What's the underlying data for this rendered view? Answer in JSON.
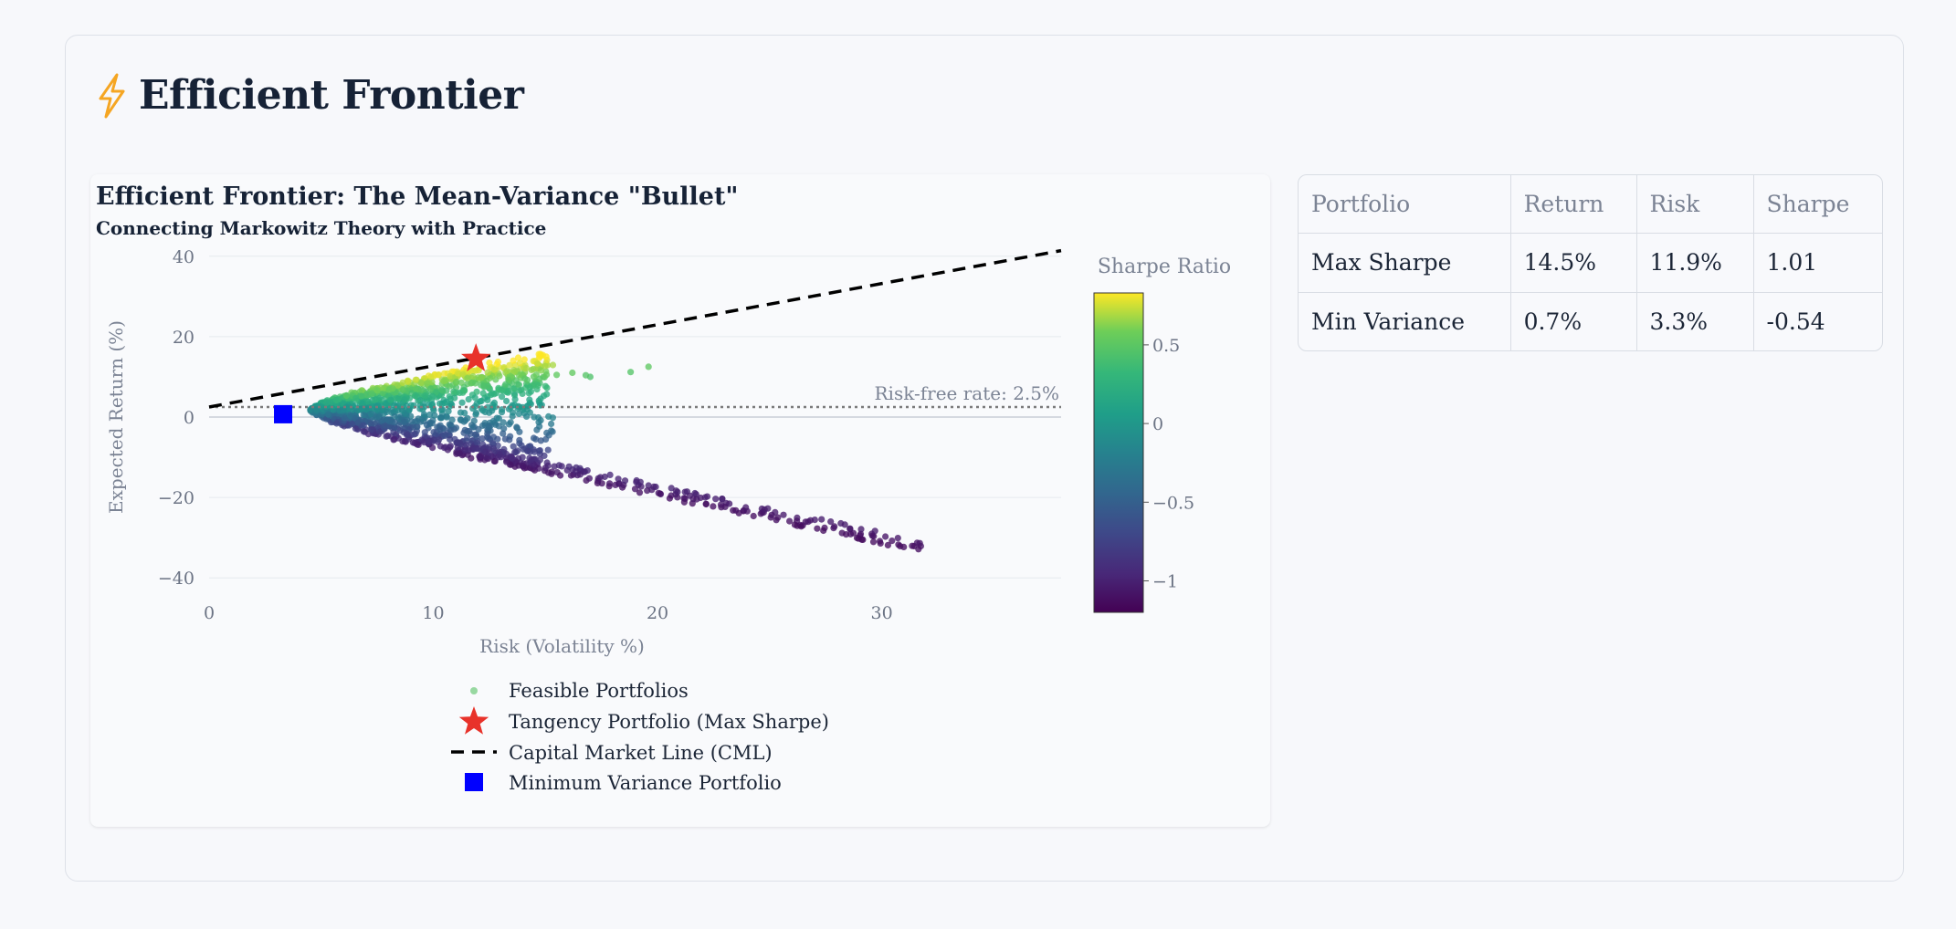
{
  "header": {
    "title": "Efficient Frontier",
    "icon": "lightning-icon"
  },
  "colors": {
    "accent": "#f5a623",
    "star": "#e8322a",
    "min_var": "#0000ff",
    "cml": "#000000"
  },
  "summary_table": {
    "columns": [
      "Portfolio",
      "Return",
      "Risk",
      "Sharpe"
    ],
    "rows": [
      [
        "Max Sharpe",
        "14.5%",
        "11.9%",
        "1.01"
      ],
      [
        "Min Variance",
        "0.7%",
        "3.3%",
        "-0.54"
      ]
    ]
  },
  "chart_data": {
    "type": "scatter",
    "title": "Efficient Frontier: The Mean-Variance \"Bullet\"",
    "subtitle": "Connecting Markowitz Theory with Practice",
    "xlabel": "Risk (Volatility %)",
    "ylabel": "Expected Return (%)",
    "xlim": [
      0,
      38
    ],
    "ylim": [
      -42,
      42
    ],
    "x_ticks": [
      0,
      10,
      20,
      30
    ],
    "y_ticks": [
      40,
      20,
      0,
      -20,
      -40
    ],
    "grid": true,
    "colorscale": "Viridis",
    "colorbar": {
      "title": "Sharpe Ratio",
      "range": [
        -1.2,
        0.83
      ],
      "ticks": [
        0.5,
        0,
        -0.5,
        -1
      ],
      "tick_labels": [
        "0.5",
        "0",
        "−0.5",
        "−1"
      ]
    },
    "risk_free_rate": 2.5,
    "risk_free_label": "Risk-free rate: 2.5%",
    "series": [
      {
        "name": "Feasible Portfolios",
        "kind": "markers",
        "points_summary": "approximately 2000 random portfolios forming a mean-variance bullet; upper edge from (5,0) to (16,11) with outliers near (20,12); lower edge from (6,-2) to (32,-35)"
      },
      {
        "name": "Tangency Portfolio (Max Sharpe)",
        "kind": "star",
        "x": 11.9,
        "y": 14.5
      },
      {
        "name": "Capital Market Line (CML)",
        "kind": "dashed-line",
        "x": [
          0,
          38
        ],
        "y": [
          2.5,
          41.4
        ]
      },
      {
        "name": "Minimum Variance Portfolio",
        "kind": "square",
        "x": 3.3,
        "y": 0.7
      }
    ],
    "legend": {
      "placement": "bottom-center",
      "items": [
        "Feasible Portfolios",
        "Tangency Portfolio (Max Sharpe)",
        "Capital Market Line (CML)",
        "Minimum Variance Portfolio"
      ]
    }
  }
}
